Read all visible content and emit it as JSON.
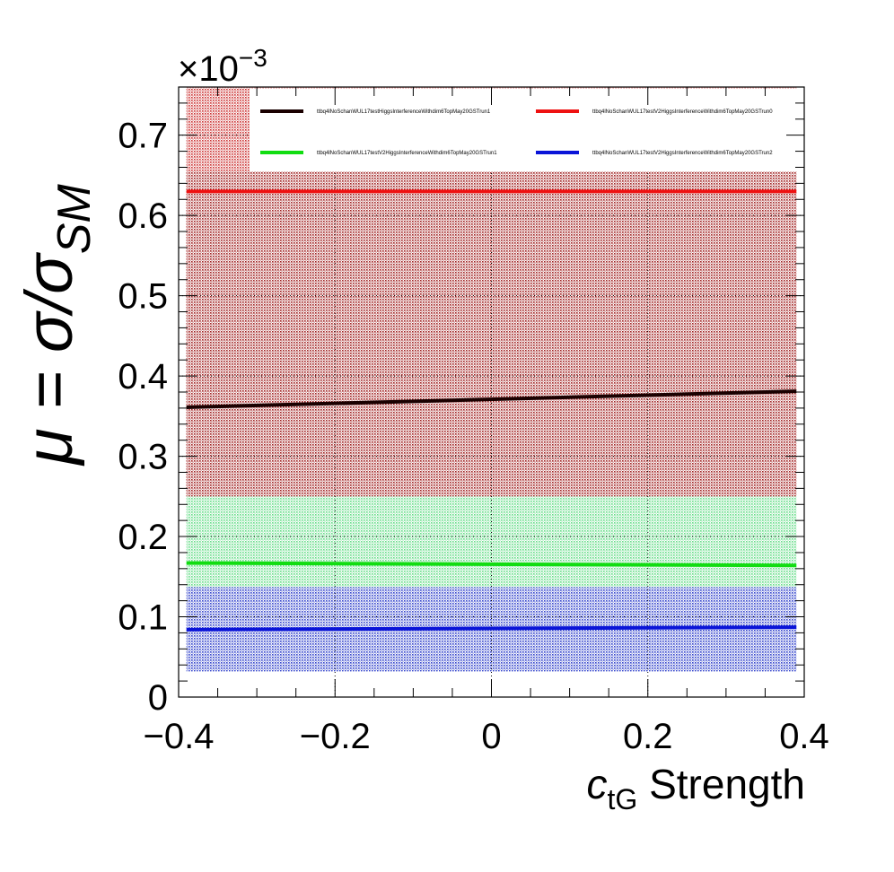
{
  "chart_data": {
    "type": "line",
    "title": "",
    "xlabel_main": "c",
    "xlabel_sub": "tG",
    "xlabel_suffix": " Strength",
    "ylabel_mu": "μ",
    "ylabel_eq": " = σ/σ",
    "ylabel_sub": "SM",
    "y_exponent_label": "×10",
    "y_exponent_power": "−3",
    "xlim": [
      -0.4,
      0.4
    ],
    "ylim": [
      0,
      0.76
    ],
    "x_ticks": [
      -0.4,
      -0.2,
      0,
      0.2,
      0.4
    ],
    "x_tick_labels": [
      "−0.4",
      "−0.2",
      "0",
      "0.2",
      "0.4"
    ],
    "y_ticks": [
      0,
      0.1,
      0.2,
      0.3,
      0.4,
      0.5,
      0.6,
      0.7
    ],
    "y_tick_labels": [
      "0",
      "0.1",
      "0.2",
      "0.3",
      "0.4",
      "0.5",
      "0.6",
      "0.7"
    ],
    "grid": true,
    "legend_position": "top",
    "y_scale_note": "values in units of 10^-3",
    "series": [
      {
        "name": "ttbq4lNoSchanWUL17testHiggsInterferenceWithdim6TopMay20GSTrun1",
        "color": "#1a0000",
        "band_color": "#a02020",
        "x": [
          -0.39,
          0.39
        ],
        "y": [
          0.361,
          0.381
        ],
        "band_low": [
          0.25,
          0.25
        ],
        "band_high": [
          0.655,
          0.655
        ]
      },
      {
        "name": "ttbq4lNoSchanWUL17testV2HiggsInterferenceWithdim6TopMay20GSTrun0",
        "color": "#ee1111",
        "band_color": "#cc3333",
        "x": [
          -0.39,
          0.39
        ],
        "y": [
          0.63,
          0.63
        ],
        "band_low": [
          0.25,
          0.25
        ],
        "band_high": [
          0.76,
          0.76
        ]
      },
      {
        "name": "ttbq4lNoSchanWUL17testV2HiggsInterferenceWithdim6TopMay20GSTrun1",
        "color": "#11dd11",
        "band_color": "#66dd88",
        "x": [
          -0.39,
          0.39
        ],
        "y": [
          0.167,
          0.164
        ],
        "band_low": [
          0.137,
          0.137
        ],
        "band_high": [
          0.25,
          0.25
        ]
      },
      {
        "name": "ttbq4lNoSchanWUL17testV2HiggsInterferenceWithdim6TopMay20GSTrun2",
        "color": "#0a14d8",
        "band_color": "#3344cc",
        "x": [
          -0.39,
          0.39
        ],
        "y": [
          0.084,
          0.087
        ],
        "band_low": [
          0.032,
          0.032
        ],
        "band_high": [
          0.137,
          0.137
        ]
      }
    ]
  }
}
